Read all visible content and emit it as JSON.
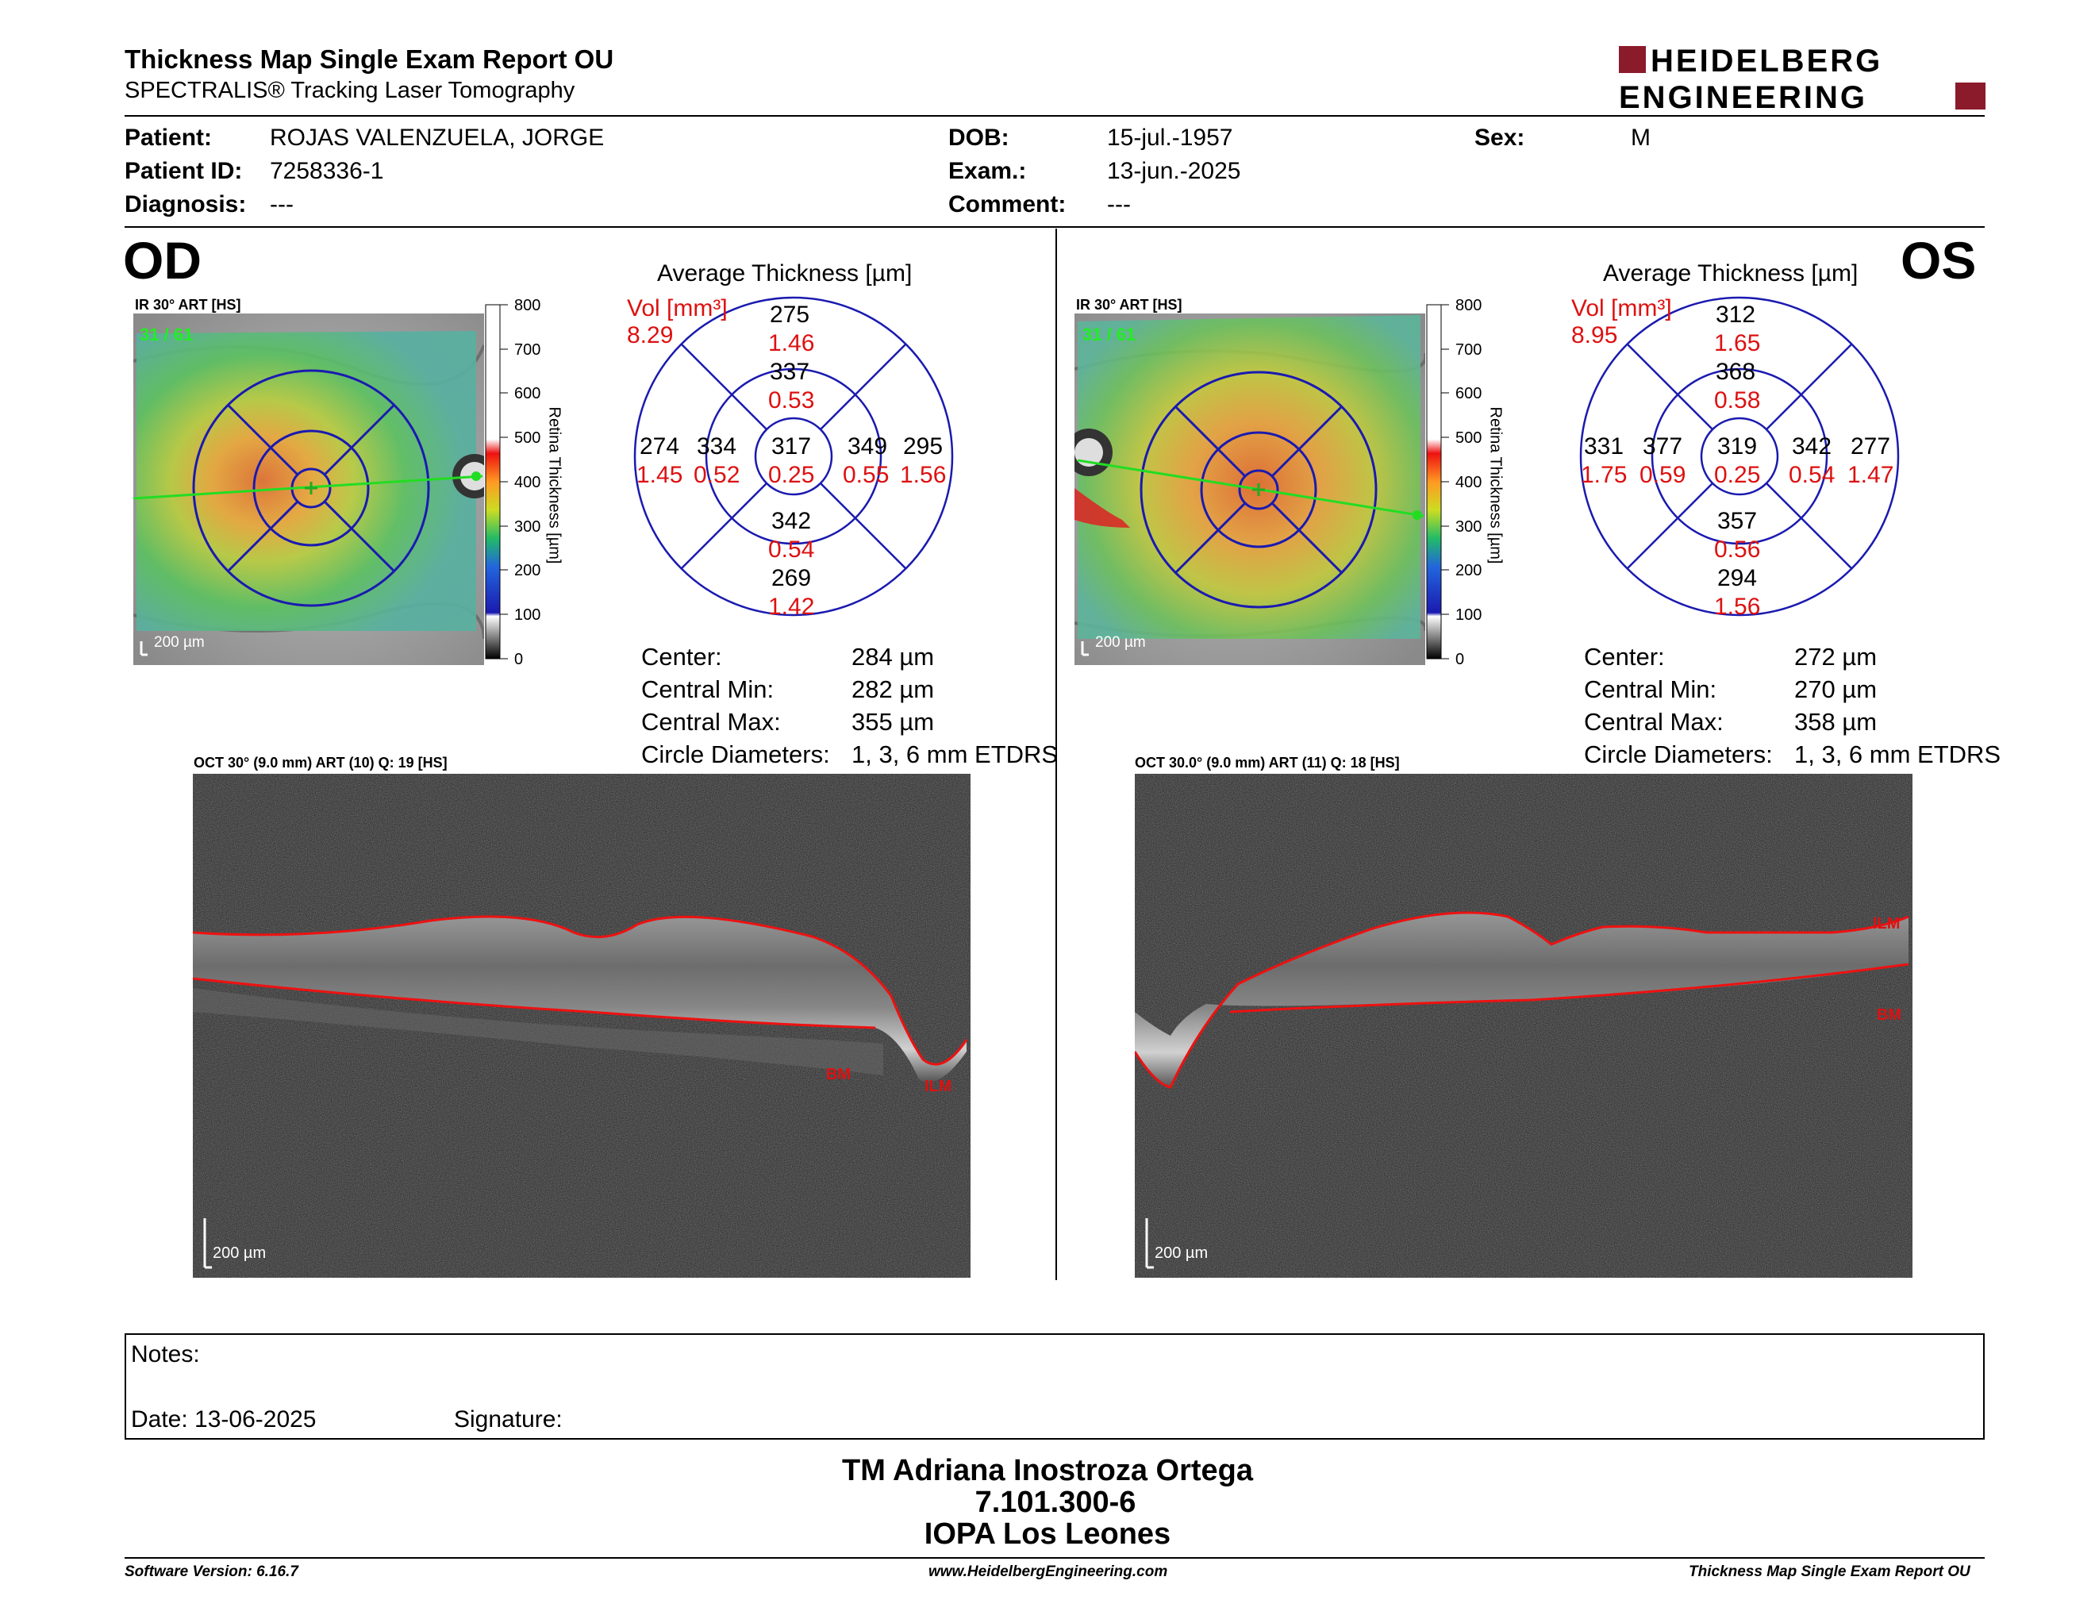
{
  "header": {
    "title": "Thickness Map Single Exam Report OU",
    "subtitle": "SPECTRALIS® Tracking Laser Tomography",
    "logo_line1": "HEIDELBERG",
    "logo_line2": "ENGINEERING",
    "brand_color": "#8b1a2b"
  },
  "patient": {
    "patient_label": "Patient:",
    "patient_value": "ROJAS VALENZUELA, JORGE",
    "id_label": "Patient ID:",
    "id_value": "7258336-1",
    "diagnosis_label": "Diagnosis:",
    "diagnosis_value": "---",
    "dob_label": "DOB:",
    "dob_value": "15-jul.-1957",
    "exam_label": "Exam.:",
    "exam_value": "13-jun.-2025",
    "comment_label": "Comment:",
    "comment_value": "---",
    "sex_label": "Sex:",
    "sex_value": "M"
  },
  "colorbar": {
    "ticks": [
      "800",
      "700",
      "600",
      "500",
      "400",
      "300",
      "200",
      "100",
      "0"
    ],
    "title": "Retina  Thickness [µm]"
  },
  "od": {
    "eye": "OD",
    "ir_label": "IR 30° ART [HS]",
    "scan_pos": "31 / 61",
    "scale": "200 µm",
    "avg_title": "Average Thickness [µm]",
    "vol_label": "Vol [mm³]",
    "vol_value": "8.29",
    "etdrs": {
      "center": {
        "t": "317",
        "v": "0.25"
      },
      "inner_sup": {
        "t": "337",
        "v": "0.53"
      },
      "inner_inf": {
        "t": "342",
        "v": "0.54"
      },
      "inner_left": {
        "t": "334",
        "v": "0.52"
      },
      "inner_right": {
        "t": "349",
        "v": "0.55"
      },
      "outer_sup": {
        "t": "275",
        "v": "1.46"
      },
      "outer_inf": {
        "t": "269",
        "v": "1.42"
      },
      "outer_left": {
        "t": "274",
        "v": "1.45"
      },
      "outer_right": {
        "t": "295",
        "v": "1.56"
      }
    },
    "stats": [
      {
        "label": "Center:",
        "value": "284 µm"
      },
      {
        "label": "Central Min:",
        "value": "282 µm"
      },
      {
        "label": "Central Max:",
        "value": "355 µm"
      },
      {
        "label": "Circle Diameters:",
        "value": "1, 3, 6 mm ETDRS"
      }
    ],
    "oct_label": "OCT 30° (9.0 mm) ART (10) Q: 19 [HS]",
    "bm": "BM",
    "ilm": "ILM",
    "oct_scale": "200 µm"
  },
  "os": {
    "eye": "OS",
    "ir_label": "IR 30° ART [HS]",
    "scan_pos": "31 / 61",
    "scale": "200 µm",
    "avg_title": "Average Thickness [µm]",
    "vol_label": "Vol [mm³]",
    "vol_value": "8.95",
    "etdrs": {
      "center": {
        "t": "319",
        "v": "0.25"
      },
      "inner_sup": {
        "t": "368",
        "v": "0.58"
      },
      "inner_inf": {
        "t": "357",
        "v": "0.56"
      },
      "inner_left": {
        "t": "377",
        "v": "0.59"
      },
      "inner_right": {
        "t": "342",
        "v": "0.54"
      },
      "outer_sup": {
        "t": "312",
        "v": "1.65"
      },
      "outer_inf": {
        "t": "294",
        "v": "1.56"
      },
      "outer_left": {
        "t": "331",
        "v": "1.75"
      },
      "outer_right": {
        "t": "277",
        "v": "1.47"
      }
    },
    "stats": [
      {
        "label": "Center:",
        "value": "272 µm"
      },
      {
        "label": "Central Min:",
        "value": "270 µm"
      },
      {
        "label": "Central Max:",
        "value": "358 µm"
      },
      {
        "label": "Circle Diameters:",
        "value": "1, 3, 6 mm ETDRS"
      }
    ],
    "oct_label": "OCT 30.0° (9.0 mm) ART (11) Q: 18 [HS]",
    "bm": "BM",
    "ilm": "ILM",
    "oct_scale": "200 µm"
  },
  "notes": {
    "notes_label": "Notes:",
    "date_label": "Date: 13-06-2025",
    "signature_label": "Signature:"
  },
  "signatory": {
    "name": "TM Adriana Inostroza Ortega",
    "id": "7.101.300-6",
    "institution": "IOPA Los Leones"
  },
  "footer": {
    "software": "Software Version: 6.16.7",
    "website": "www.HeidelbergEngineering.com",
    "report": "Thickness Map Single Exam Report OU"
  }
}
